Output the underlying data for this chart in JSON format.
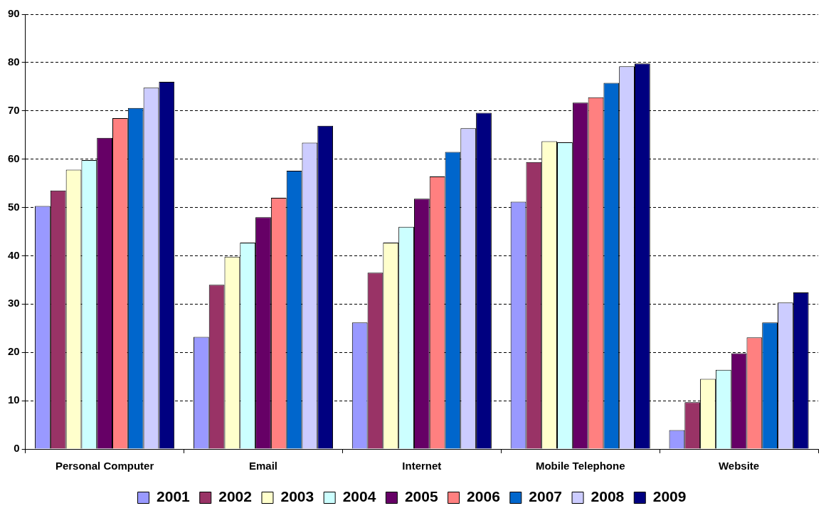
{
  "chart_data": {
    "type": "bar",
    "categories": [
      "Personal Computer",
      "Email",
      "Internet",
      "Mobile Telephone",
      "Website"
    ],
    "series": [
      {
        "name": "2001",
        "color": "#9999ff",
        "values": [
          50.3,
          23.2,
          26.2,
          51.2,
          3.9
        ]
      },
      {
        "name": "2002",
        "color": "#993366",
        "values": [
          53.5,
          34,
          36.5,
          59.4,
          9.7
        ]
      },
      {
        "name": "2003",
        "color": "#ffffcc",
        "values": [
          57.8,
          39.8,
          42.7,
          63.7,
          14.5
        ]
      },
      {
        "name": "2004",
        "color": "#ccffff",
        "values": [
          59.8,
          42.7,
          46,
          63.5,
          16.4
        ]
      },
      {
        "name": "2005",
        "color": "#660066",
        "values": [
          64.4,
          48,
          51.8,
          71.7,
          19.8
        ]
      },
      {
        "name": "2006",
        "color": "#ff8080",
        "values": [
          68.5,
          52,
          56.4,
          72.8,
          23.1
        ]
      },
      {
        "name": "2007",
        "color": "#0066cc",
        "values": [
          70.6,
          57.6,
          61.5,
          75.8,
          26.2
        ]
      },
      {
        "name": "2008",
        "color": "#ccccff",
        "values": [
          74.8,
          63.4,
          66.4,
          79.2,
          30.3
        ]
      },
      {
        "name": "2009",
        "color": "#000080",
        "values": [
          76,
          66.9,
          69.6,
          79.8,
          32.4
        ]
      }
    ],
    "ylim": [
      0,
      90
    ],
    "yticks": [
      0,
      10,
      20,
      30,
      40,
      50,
      60,
      70,
      80,
      90
    ],
    "grid": "y",
    "legend": "bottom"
  }
}
